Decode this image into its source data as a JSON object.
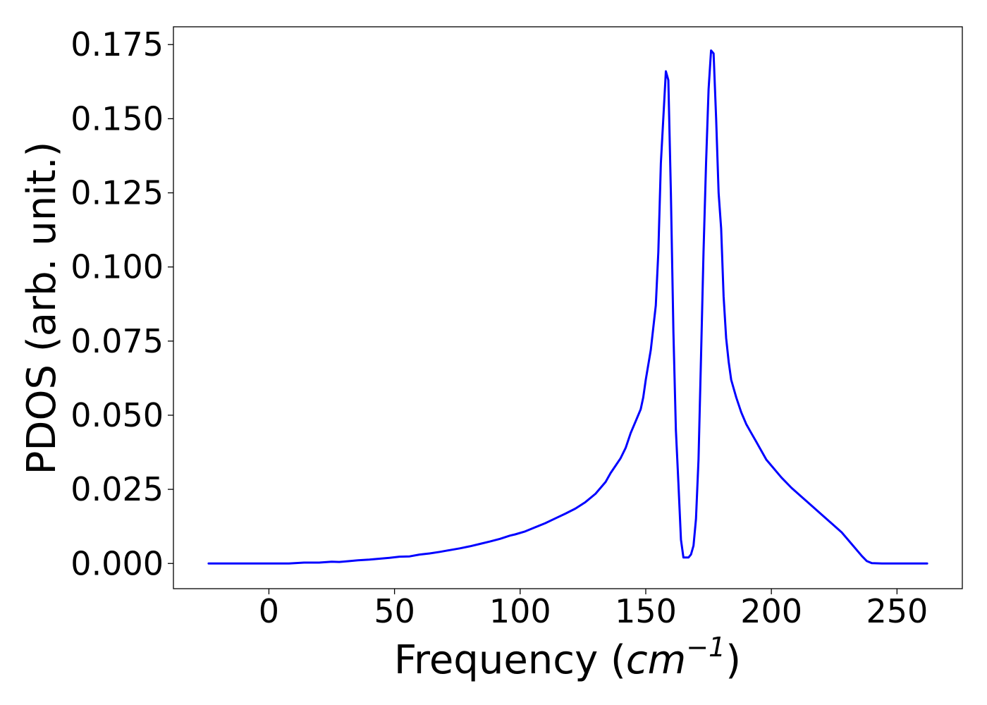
{
  "chart_data": {
    "type": "line",
    "title": "",
    "xlabel": {
      "prefix": "Frequency (",
      "unit_base": "cm",
      "unit_exponent": "−1",
      "suffix": ")"
    },
    "ylabel": "PDOS (arb. unit.)",
    "xlim": [
      -38,
      276
    ],
    "ylim": [
      -0.0085,
      0.181
    ],
    "xticks": [
      0,
      50,
      100,
      150,
      200,
      250
    ],
    "xtick_labels": [
      "0",
      "50",
      "100",
      "150",
      "200",
      "250"
    ],
    "yticks": [
      0,
      0.025,
      0.05,
      0.075,
      0.1,
      0.125,
      0.15,
      0.175
    ],
    "ytick_labels": [
      "0.000",
      "0.025",
      "0.050",
      "0.075",
      "0.100",
      "0.125",
      "0.150",
      "0.175"
    ],
    "grid": false,
    "series": [
      {
        "color": "#0000ff",
        "x": [
          -24,
          0,
          8,
          14,
          20,
          25,
          28,
          32,
          36,
          40,
          44,
          48,
          52,
          56,
          60,
          64,
          68,
          72,
          76,
          80,
          84,
          88,
          92,
          96,
          98,
          102,
          106,
          110,
          114,
          118,
          122,
          126,
          130,
          134,
          136,
          138,
          140,
          142,
          144,
          146,
          148,
          149,
          150,
          152,
          154,
          155,
          156,
          158,
          159,
          160,
          161,
          162,
          163,
          164,
          165,
          166,
          167,
          168,
          169,
          170,
          171,
          172,
          173,
          174,
          175,
          176,
          177,
          178,
          179,
          180,
          181,
          182,
          183,
          184,
          185,
          186,
          188,
          190,
          192,
          194,
          196,
          198,
          200,
          204,
          208,
          212,
          216,
          220,
          224,
          228,
          232,
          236,
          238,
          240,
          244,
          250,
          262
        ],
        "y": [
          0,
          0,
          0,
          0.0003,
          0.0003,
          0.0006,
          0.0005,
          0.0008,
          0.0011,
          0.0013,
          0.0016,
          0.0019,
          0.0023,
          0.0024,
          0.003,
          0.0034,
          0.0039,
          0.0045,
          0.0051,
          0.0058,
          0.0066,
          0.0074,
          0.0083,
          0.0094,
          0.0098,
          0.0108,
          0.0122,
          0.0136,
          0.0152,
          0.0168,
          0.0185,
          0.0207,
          0.0235,
          0.0275,
          0.0305,
          0.033,
          0.0355,
          0.039,
          0.044,
          0.048,
          0.052,
          0.056,
          0.062,
          0.072,
          0.087,
          0.105,
          0.135,
          0.166,
          0.163,
          0.125,
          0.078,
          0.045,
          0.027,
          0.008,
          0.002,
          0.002,
          0.002,
          0.003,
          0.006,
          0.015,
          0.035,
          0.07,
          0.105,
          0.135,
          0.16,
          0.173,
          0.172,
          0.15,
          0.125,
          0.113,
          0.09,
          0.076,
          0.068,
          0.062,
          0.059,
          0.056,
          0.051,
          0.047,
          0.044,
          0.041,
          0.038,
          0.035,
          0.033,
          0.029,
          0.0255,
          0.0225,
          0.0195,
          0.0165,
          0.0135,
          0.0105,
          0.0065,
          0.0025,
          0.0008,
          0.0001,
          0,
          0,
          0
        ]
      }
    ]
  }
}
